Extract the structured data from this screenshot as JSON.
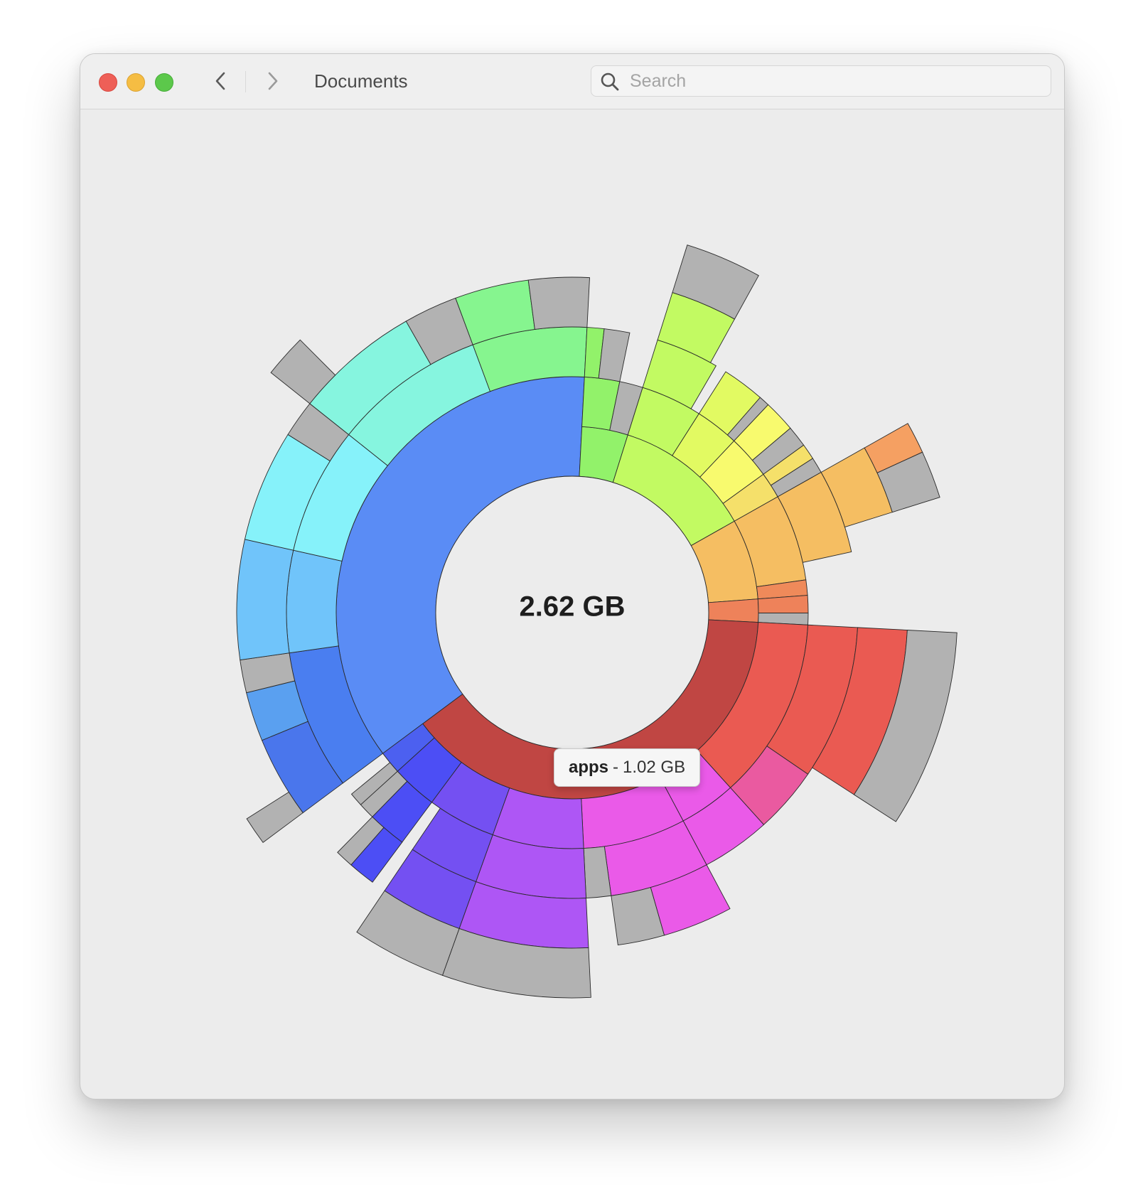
{
  "window": {
    "title": "Documents"
  },
  "search": {
    "placeholder": "Search",
    "value": ""
  },
  "icons": {
    "back": "chevron-left-icon",
    "forward": "chevron-right-icon",
    "search": "search-icon"
  },
  "summary": {
    "total": "2.62 GB"
  },
  "tooltip": {
    "name": "apps",
    "separator": "-",
    "size": "1.02 GB"
  },
  "colors": {
    "close": "#ee5f57",
    "minimize": "#f5bd43",
    "zoom": "#5cc84b",
    "free_space": "#b2b2b2",
    "selected": "#c04643"
  },
  "chart_data": {
    "type": "sunburst",
    "total": "2.62 GB",
    "hovered": {
      "name": "apps",
      "size": "1.02 GB"
    },
    "unit": "fraction of parent",
    "segments": [
      {
        "color": "#5a8cf5",
        "fraction": 0.36,
        "depth": 2,
        "children": [
          {
            "color": "#4a7ef0",
            "fraction": 0.22,
            "children": [
              {
                "color": "#4a76ec",
                "fraction": 0.5,
                "children": [
                  {
                    "color": "#b2b2b2",
                    "fraction": 0.3
                  }
                ]
              },
              {
                "color": "#5aa0f0",
                "fraction": 0.3
              },
              {
                "color": "#b2b2b2",
                "fraction": 0.2
              }
            ]
          },
          {
            "color": "#70c4fa",
            "fraction": 0.16,
            "children": [
              {
                "color": "#70c4fa",
                "fraction": 1
              }
            ]
          },
          {
            "color": "#86f2fa",
            "fraction": 0.2,
            "children": [
              {
                "color": "#86f2fa",
                "fraction": 0.75
              },
              {
                "color": "#b2b2b2",
                "fraction": 0.25
              }
            ]
          },
          {
            "color": "#86f5df",
            "fraction": 0.24,
            "children": [
              {
                "color": "#86f5df",
                "fraction": 0.7,
                "children": [
                  {
                    "color": "#b2b2b2",
                    "fraction": 0.3
                  }
                ]
              },
              {
                "color": "#b2b2b2",
                "fraction": 0.3
              }
            ]
          },
          {
            "color": "#86f58f",
            "fraction": 0.18,
            "children": [
              {
                "color": "#86f58f",
                "fraction": 0.55
              },
              {
                "color": "#b2b2b2",
                "fraction": 0.45
              }
            ]
          }
        ]
      },
      {
        "color": "#92f26a",
        "fraction": 0.04,
        "depth": 1,
        "children": [
          {
            "color": "#92f26a",
            "fraction": 0.6,
            "children": [
              {
                "color": "#92f26a",
                "fraction": 0.4
              },
              {
                "color": "#b2b2b2",
                "fraction": 0.6
              }
            ]
          },
          {
            "color": "#b2b2b2",
            "fraction": 0.4
          }
        ]
      },
      {
        "color": "#c2fa62",
        "fraction": 0.12,
        "depth": 1,
        "children": [
          {
            "color": "#c2fa62",
            "fraction": 0.35,
            "children": [
              {
                "color": "#c2fa62",
                "fraction": 0.85,
                "children": [
                  {
                    "color": "#c2fa62",
                    "fraction": 0.9,
                    "children": [
                      {
                        "color": "#b2b2b2",
                        "fraction": 1
                      }
                    ]
                  }
                ]
              }
            ]
          },
          {
            "color": "#e2fa62",
            "fraction": 0.25,
            "children": [
              {
                "color": "#e2fa62",
                "fraction": 0.8
              },
              {
                "color": "#b2b2b2",
                "fraction": 0.2
              }
            ]
          },
          {
            "color": "#f8fa6e",
            "fraction": 0.25,
            "children": [
              {
                "color": "#f8fa6e",
                "fraction": 0.6
              },
              {
                "color": "#b2b2b2",
                "fraction": 0.4
              }
            ]
          },
          {
            "color": "#f5e06a",
            "fraction": 0.15,
            "children": [
              {
                "color": "#f5e06a",
                "fraction": 0.5
              },
              {
                "color": "#b2b2b2",
                "fraction": 0.5
              }
            ]
          }
        ]
      },
      {
        "color": "#f5be62",
        "fraction": 0.07,
        "depth": 1,
        "children": [
          {
            "color": "#f5be62",
            "fraction": 0.85,
            "children": [
              {
                "color": "#f5be62",
                "fraction": 0.8,
                "children": [
                  {
                    "color": "#f5be62",
                    "fraction": 0.7,
                    "children": [
                      {
                        "color": "#f5a062",
                        "fraction": 0.4
                      },
                      {
                        "color": "#b2b2b2",
                        "fraction": 0.6
                      }
                    ]
                  }
                ]
              }
            ]
          },
          {
            "color": "#ef8a5a",
            "fraction": 0.15
          }
        ]
      },
      {
        "color": "#ee825a",
        "fraction": 0.02,
        "depth": 1,
        "children": [
          {
            "color": "#ee825a",
            "fraction": 0.6
          },
          {
            "color": "#b2b2b2",
            "fraction": 0.4
          }
        ]
      },
      {
        "color": "#c04643",
        "fraction": 0.39,
        "depth": 1,
        "label": "apps",
        "children": [
          {
            "color": "#ea5a52",
            "fraction": 0.32,
            "children": [
              {
                "color": "#ea5a52",
                "fraction": 0.7,
                "children": [
                  {
                    "color": "#ea5a52",
                    "fraction": 0.95,
                    "children": [
                      {
                        "color": "#b2b2b2",
                        "fraction": 1
                      }
                    ]
                  }
                ]
              },
              {
                "color": "#ea5aa0",
                "fraction": 0.3
              }
            ]
          },
          {
            "color": "#ea5ae8",
            "fraction": 0.1,
            "children": [
              {
                "color": "#ea5ae8",
                "fraction": 1
              }
            ]
          },
          {
            "color": "#ea5ae8",
            "fraction": 0.18,
            "children": [
              {
                "color": "#ea5ae8",
                "fraction": 0.8,
                "children": [
                  {
                    "color": "#ea5ae8",
                    "fraction": 0.6
                  },
                  {
                    "color": "#b2b2b2",
                    "fraction": 0.4
                  }
                ]
              },
              {
                "color": "#b2b2b2",
                "fraction": 0.2
              }
            ]
          },
          {
            "color": "#ae56f5",
            "fraction": 0.16,
            "children": [
              {
                "color": "#ae56f5",
                "fraction": 1,
                "children": [
                  {
                    "color": "#ae56f5",
                    "fraction": 1,
                    "children": [
                      {
                        "color": "#b2b2b2",
                        "fraction": 1
                      }
                    ]
                  }
                ]
              }
            ]
          },
          {
            "color": "#7450f2",
            "fraction": 0.12,
            "children": [
              {
                "color": "#7450f2",
                "fraction": 0.85,
                "children": [
                  {
                    "color": "#7450f2",
                    "fraction": 1,
                    "children": [
                      {
                        "color": "#b2b2b2",
                        "fraction": 1
                      }
                    ]
                  }
                ]
              }
            ]
          },
          {
            "color": "#4c4ef5",
            "fraction": 0.08,
            "children": [
              {
                "color": "#4c4ef5",
                "fraction": 0.7,
                "children": [
                  {
                    "color": "#4c4ef5",
                    "fraction": 0.6
                  },
                  {
                    "color": "#b2b2b2",
                    "fraction": 0.4
                  }
                ]
              },
              {
                "color": "#b2b2b2",
                "fraction": 0.3
              }
            ]
          },
          {
            "color": "#4c60f0",
            "fraction": 0.04,
            "children": [
              {
                "color": "#b2b2b2",
                "fraction": 0.5
              }
            ]
          }
        ]
      }
    ]
  }
}
